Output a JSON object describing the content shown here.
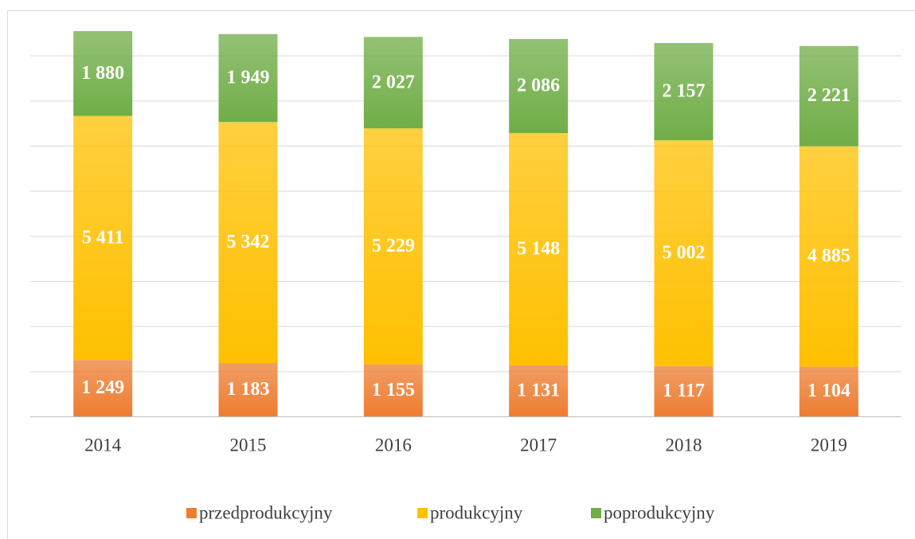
{
  "chart_data": {
    "type": "stacked_bar",
    "categories": [
      "2014",
      "2015",
      "2016",
      "2017",
      "2018",
      "2019"
    ],
    "series": [
      {
        "name": "przedprodukcyjny",
        "color": "#ed7d31",
        "values": [
          1249,
          1183,
          1155,
          1131,
          1117,
          1104
        ],
        "value_labels": [
          "1 249",
          "1 183",
          "1 155",
          "1 131",
          "1 117",
          "1 104"
        ]
      },
      {
        "name": "produkcyjny",
        "color": "#ffc000",
        "values": [
          5411,
          5342,
          5229,
          5148,
          5002,
          4885
        ],
        "value_labels": [
          "5 411",
          "5 342",
          "5 229",
          "5 148",
          "5 002",
          "4 885"
        ]
      },
      {
        "name": "poprodukcyjny",
        "color": "#70ad47",
        "values": [
          1880,
          1949,
          2027,
          2086,
          2157,
          2221
        ],
        "value_labels": [
          "1 880",
          "1 949",
          "2 027",
          "2 086",
          "2 157",
          "2 221"
        ]
      }
    ],
    "ylim": [
      0,
      9000
    ],
    "yticks": [
      0,
      1000,
      2000,
      3000,
      4000,
      5000,
      6000,
      7000,
      8000
    ],
    "grid": true,
    "legend": "bottom"
  }
}
